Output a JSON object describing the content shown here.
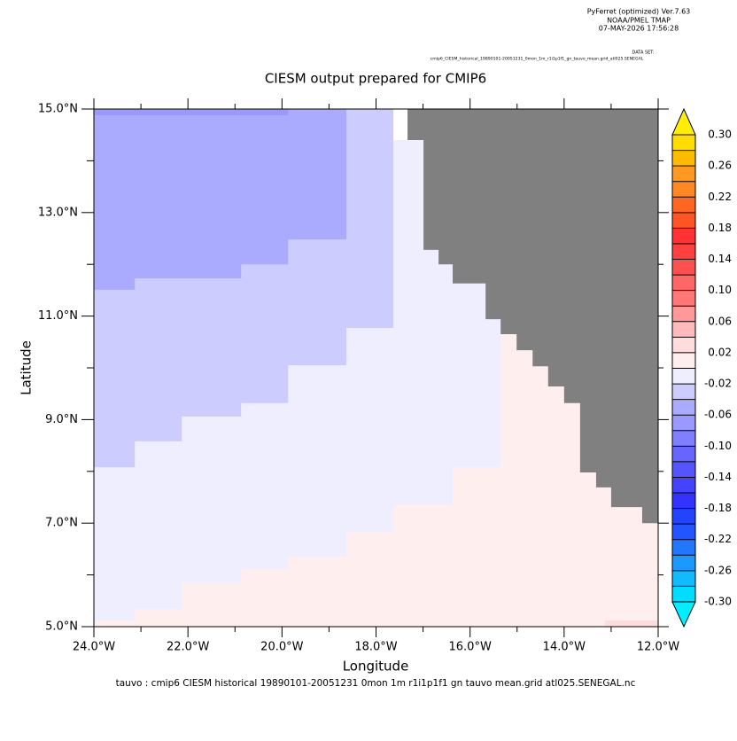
{
  "header": {
    "lines": [
      "PyFerret (optimized) Ver.7.63",
      "NOAA/PMEL TMAP",
      "07-MAY-2026 17:56:28"
    ],
    "dataset_label": "DATA SET:",
    "dataset": "cmip6_CIESM_historical_19890101-20051231_0mon_1m_r1i1p1f1_gn_tauvo_mean.grid_atl025.SENEGAL"
  },
  "chart_data": {
    "type": "filled_contour",
    "title": "CIESM output prepared for CMIP6",
    "x_label": "Longitude",
    "y_label": "Latitude",
    "footer": "tauvo : cmip6 CIESM historical 19890101-20051231 0mon 1m r1i1p1f1 gn tauvo mean.grid atl025.SENEGAL.nc",
    "xlim": [
      -24,
      -12
    ],
    "ylim": [
      5,
      15
    ],
    "xticks": [
      {
        "value": -24,
        "label": "24.0°W"
      },
      {
        "value": -22,
        "label": "22.0°W"
      },
      {
        "value": -20,
        "label": "20.0°W"
      },
      {
        "value": -18,
        "label": "18.0°W"
      },
      {
        "value": -16,
        "label": "16.0°W"
      },
      {
        "value": -14,
        "label": "14.0°W"
      },
      {
        "value": -12,
        "label": "12.0°W"
      }
    ],
    "xminor": [
      -23,
      -21,
      -19,
      -17,
      -15,
      -13
    ],
    "yticks": [
      {
        "value": 5,
        "label": "5.0°N"
      },
      {
        "value": 7,
        "label": "7.0°N"
      },
      {
        "value": 9,
        "label": "9.0°N"
      },
      {
        "value": 11,
        "label": "11.0°N"
      },
      {
        "value": 13,
        "label": "13.0°N"
      },
      {
        "value": 15,
        "label": "15.0°N"
      }
    ],
    "yminor": [
      6,
      8,
      10,
      12,
      14
    ],
    "regions": [
      {
        "value": 0.01,
        "lon": [
          -24,
          -12,
          -12,
          -24
        ],
        "lat": [
          5,
          5,
          15,
          15
        ]
      },
      {
        "value": -0.01,
        "lon": [
          -24,
          -15.35,
          -15.35,
          -16.37,
          -16.37,
          -17.63,
          -17.63,
          -18.63,
          -18.63,
          -19.87,
          -19.87,
          -20.87,
          -20.87,
          -22.13,
          -22.13,
          -23.13,
          -23.13,
          -24
        ],
        "lat": [
          15,
          15,
          8.08,
          8.08,
          7.35,
          7.35,
          6.83,
          6.83,
          6.35,
          6.35,
          6.11,
          6.11,
          5.86,
          5.86,
          5.34,
          5.34,
          5.12,
          5.12
        ]
      },
      {
        "value": -0.03,
        "lon": [
          -24,
          -17.63,
          -17.63,
          -18.63,
          -18.63,
          -19.87,
          -19.87,
          -20.87,
          -20.87,
          -22.13,
          -22.13,
          -23.13,
          -23.13,
          -24
        ],
        "lat": [
          15,
          15,
          10.77,
          10.77,
          10.05,
          10.05,
          9.32,
          9.32,
          9.06,
          9.06,
          8.58,
          8.58,
          8.08,
          8.08
        ]
      },
      {
        "value": -0.05,
        "lon": [
          -24,
          -18.63,
          -18.63,
          -19.87,
          -19.87,
          -20.87,
          -20.87,
          -23.13,
          -23.13,
          -24
        ],
        "lat": [
          15,
          15,
          12.48,
          12.48,
          12.0,
          12.0,
          11.73,
          11.73,
          11.51,
          11.51
        ]
      },
      {
        "value": -0.07,
        "lon": [
          -24,
          -19.87,
          -19.87,
          -24
        ],
        "lat": [
          15,
          15,
          14.88,
          14.88
        ]
      },
      {
        "value": 0.03,
        "lon": [
          -13.13,
          -12,
          -12,
          -13.13
        ],
        "lat": [
          5,
          5,
          5.12,
          5.12
        ]
      }
    ],
    "missing_color": "#ffffff",
    "missing": [
      {
        "lon": [
          -17.63,
          -17.33,
          -17.33,
          -17.63
        ],
        "lat": [
          15,
          15,
          14.4,
          14.4
        ]
      }
    ],
    "land_color": "#808080",
    "land": [
      {
        "lon": [
          -17.33,
          -12,
          -12,
          -12.34,
          -12.34,
          -13.0,
          -13.0,
          -13.32,
          -13.32,
          -13.66,
          -13.66,
          -14.0,
          -14.0,
          -14.34,
          -14.34,
          -14.67,
          -14.67,
          -15.01,
          -15.01,
          -15.35,
          -15.35,
          -15.67,
          -15.67,
          -16.37,
          -16.37,
          -16.67,
          -16.67,
          -16.99,
          -16.99,
          -17.33
        ],
        "lat": [
          15,
          15,
          7.0,
          7.0,
          7.31,
          7.31,
          7.69,
          7.69,
          7.98,
          7.98,
          9.32,
          9.32,
          9.64,
          9.64,
          10.03,
          10.03,
          10.34,
          10.34,
          10.65,
          10.65,
          10.94,
          10.94,
          11.63,
          11.63,
          12.0,
          12.0,
          12.28,
          12.28,
          14.4,
          14.4
        ]
      }
    ],
    "colorbar": {
      "clim": [
        -0.3,
        0.3
      ],
      "levels": [
        -0.3,
        -0.28,
        -0.26,
        -0.24,
        -0.22,
        -0.2,
        -0.18,
        -0.16,
        -0.14,
        -0.12,
        -0.1,
        -0.08,
        -0.06,
        -0.04,
        -0.02,
        0,
        0.02,
        0.04,
        0.06,
        0.08,
        0.1,
        0.12,
        0.14,
        0.16,
        0.18,
        0.2,
        0.22,
        0.24,
        0.26,
        0.28,
        0.3
      ],
      "colors": [
        "#00ddff",
        "#10bbff",
        "#1a99ff",
        "#2277ff",
        "#2255ff",
        "#2244ff",
        "#3333ff",
        "#4444ff",
        "#5555ff",
        "#6666ff",
        "#8080ff",
        "#9999ff",
        "#aaaaff",
        "#ccccff",
        "#eeeeff",
        "#ffeeee",
        "#ffdddd",
        "#ffbbbb",
        "#ff9999",
        "#ff7777",
        "#ff6666",
        "#ff5050",
        "#ff4040",
        "#ff3333",
        "#ff5522",
        "#ff6622",
        "#ff8822",
        "#ff9922",
        "#ffbb00",
        "#ffdd00"
      ],
      "under_color": "#00eeff",
      "over_color": "#ffee00",
      "ticks": [
        {
          "value": 0.3,
          "label": "0.30"
        },
        {
          "value": 0.26,
          "label": "0.26"
        },
        {
          "value": 0.22,
          "label": "0.22"
        },
        {
          "value": 0.18,
          "label": "0.18"
        },
        {
          "value": 0.14,
          "label": "0.14"
        },
        {
          "value": 0.1,
          "label": "0.10"
        },
        {
          "value": 0.06,
          "label": "0.06"
        },
        {
          "value": 0.02,
          "label": "0.02"
        },
        {
          "value": -0.02,
          "label": "-0.02"
        },
        {
          "value": -0.06,
          "label": "-0.06"
        },
        {
          "value": -0.1,
          "label": "-0.10"
        },
        {
          "value": -0.14,
          "label": "-0.14"
        },
        {
          "value": -0.18,
          "label": "-0.18"
        },
        {
          "value": -0.22,
          "label": "-0.22"
        },
        {
          "value": -0.26,
          "label": "-0.26"
        },
        {
          "value": -0.3,
          "label": "-0.30"
        }
      ]
    }
  }
}
